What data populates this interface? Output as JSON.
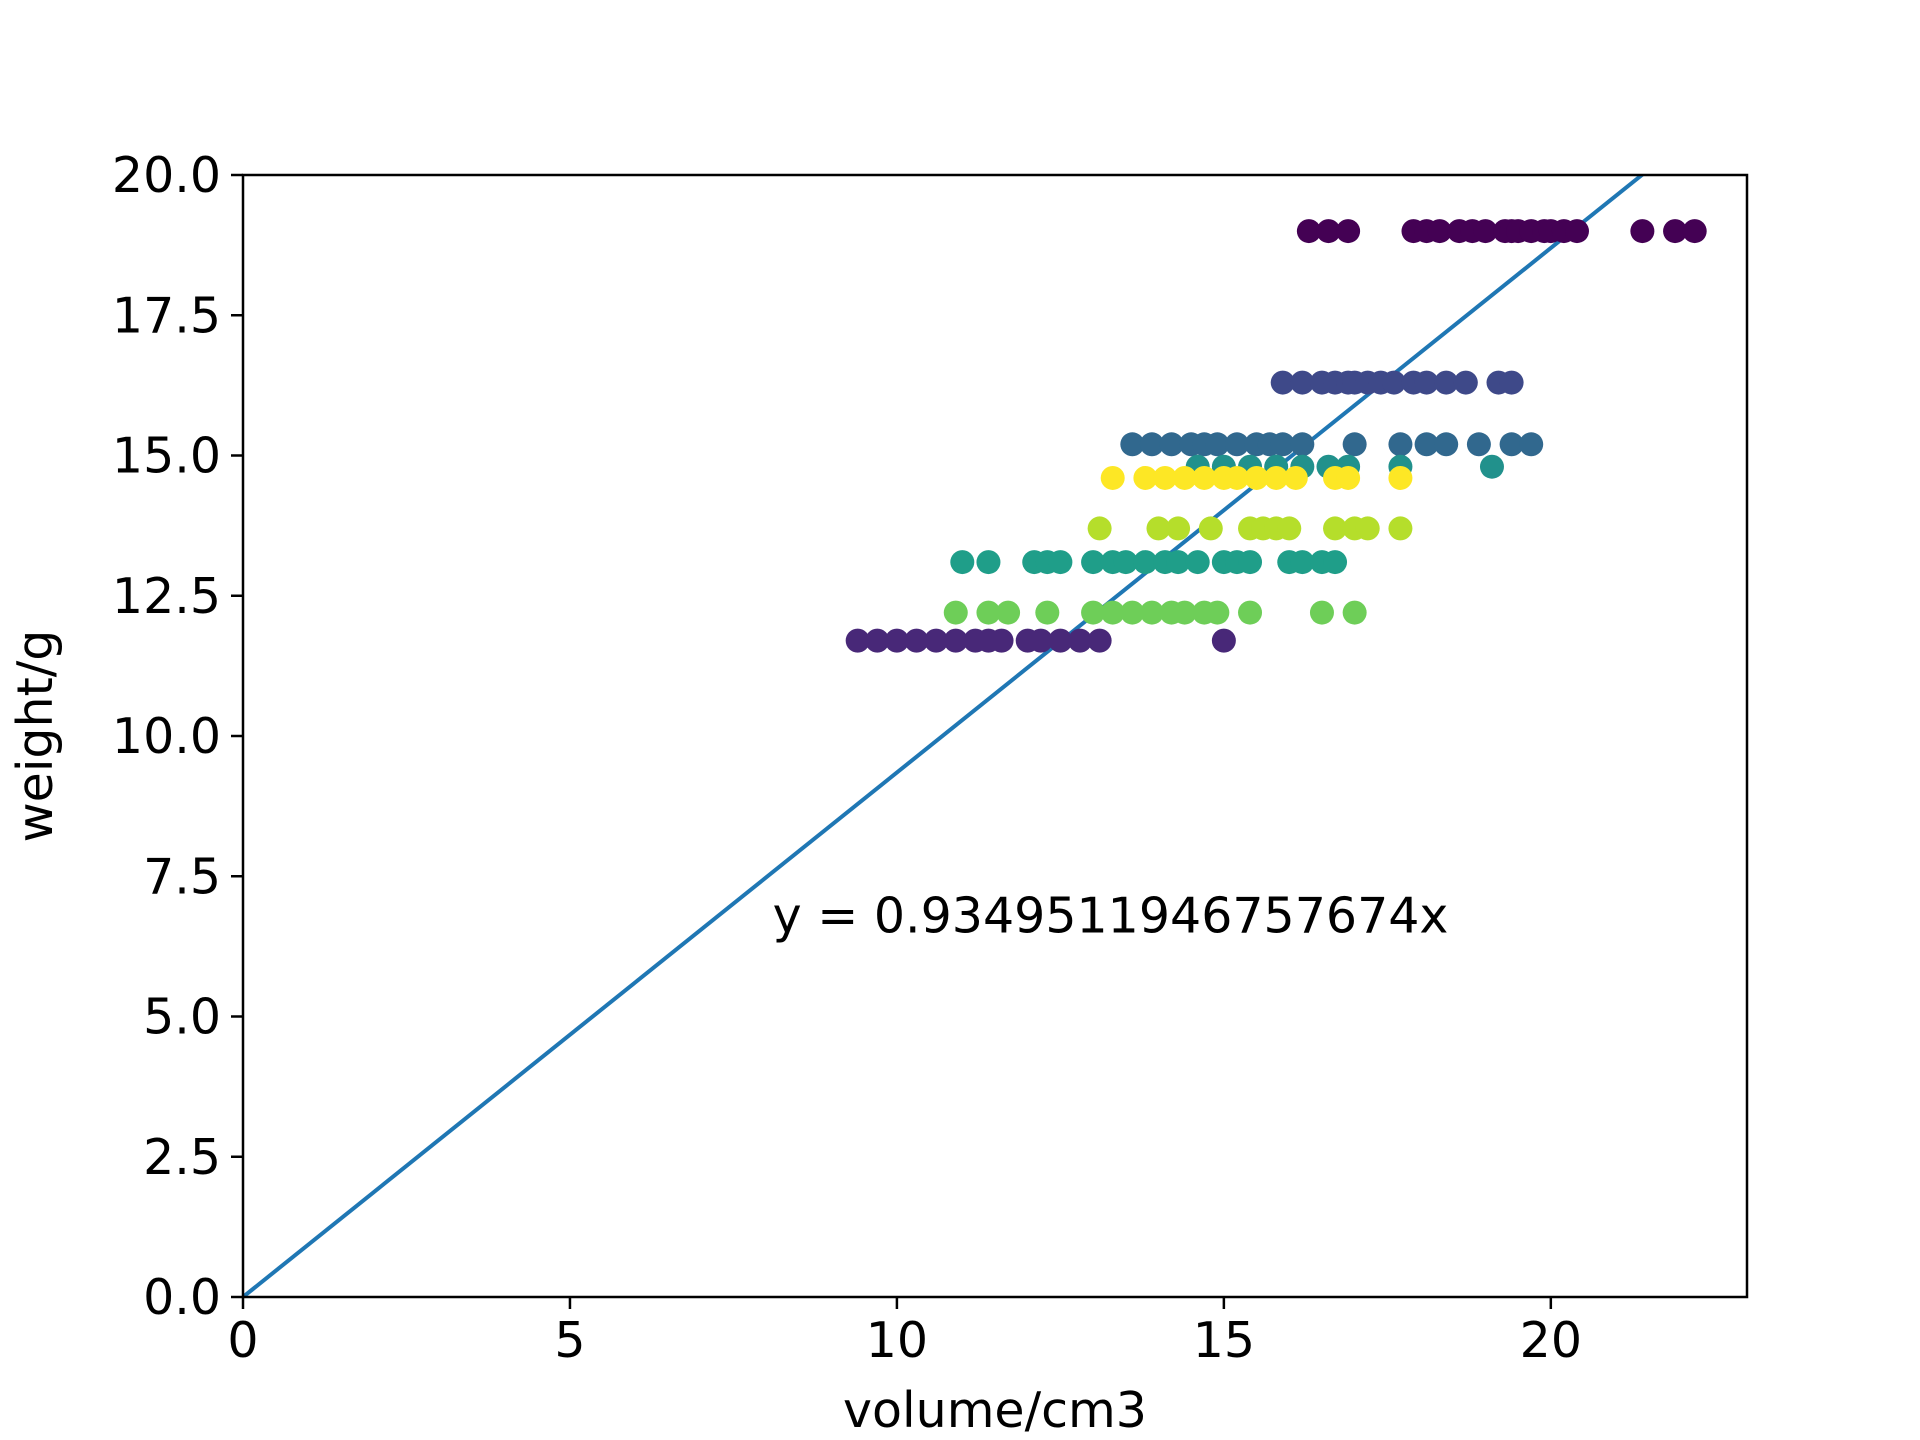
{
  "chart_data": {
    "type": "scatter",
    "title": "",
    "xlabel": "volume/cm3",
    "ylabel": "weight/g",
    "xlim": [
      0,
      23
    ],
    "ylim": [
      0,
      20
    ],
    "x_ticks": [
      "0",
      "5",
      "10",
      "15",
      "20"
    ],
    "y_ticks": [
      "0.0",
      "2.5",
      "5.0",
      "7.5",
      "10.0",
      "12.5",
      "15.0",
      "17.5",
      "20.0"
    ],
    "grid": false,
    "legend": "none",
    "annotation": {
      "text": "y = 0.9349511946757674x",
      "x": 8.1,
      "y": 6.5
    },
    "fit_line": {
      "slope": 0.9349511946757674,
      "intercept": 0,
      "x_range": [
        0,
        23
      ],
      "color": "#1f77b4"
    },
    "colormap": "viridis",
    "series": [
      {
        "color": "#440154",
        "y": 19.0,
        "x": [
          16.3,
          16.6,
          16.9,
          17.9,
          18.1,
          18.3,
          18.6,
          18.8,
          19.0,
          19.3,
          19.4,
          19.5,
          19.7,
          19.9,
          20.0,
          20.2,
          20.4,
          21.4,
          21.9,
          22.2
        ]
      },
      {
        "color": "#3e4989",
        "y": 16.3,
        "x": [
          15.9,
          16.2,
          16.5,
          16.7,
          16.9,
          17.0,
          17.2,
          17.4,
          17.6,
          17.9,
          18.1,
          18.4,
          18.7,
          19.2,
          19.4
        ]
      },
      {
        "color": "#31688e",
        "y": 15.2,
        "x": [
          13.6,
          13.9,
          14.2,
          14.5,
          14.7,
          14.9,
          15.2,
          15.5,
          15.7,
          15.9,
          16.2,
          17.0,
          17.7,
          18.1,
          18.4,
          18.9,
          19.4,
          19.7
        ]
      },
      {
        "color": "#21918c",
        "y": 14.8,
        "x": [
          14.6,
          15.0,
          15.4,
          15.8,
          16.2,
          16.6,
          16.9,
          17.7,
          19.1
        ]
      },
      {
        "color": "#fde725",
        "y": 14.6,
        "x": [
          13.3,
          13.8,
          14.1,
          14.4,
          14.7,
          15.0,
          15.2,
          15.5,
          15.8,
          16.1,
          16.7,
          16.9,
          17.7
        ]
      },
      {
        "color": "#b5de2b",
        "y": 13.7,
        "x": [
          13.1,
          14.0,
          14.3,
          14.8,
          15.4,
          15.6,
          15.8,
          16.0,
          16.7,
          17.0,
          17.2,
          17.7
        ]
      },
      {
        "color": "#1f9e89",
        "y": 13.1,
        "x": [
          11.0,
          11.4,
          12.1,
          12.3,
          12.5,
          13.0,
          13.3,
          13.5,
          13.8,
          14.1,
          14.3,
          14.6,
          15.0,
          15.2,
          15.4,
          16.0,
          16.2,
          16.5,
          16.7
        ]
      },
      {
        "color": "#6ece58",
        "y": 12.2,
        "x": [
          10.9,
          11.4,
          11.7,
          12.3,
          13.0,
          13.3,
          13.6,
          13.9,
          14.2,
          14.4,
          14.7,
          14.9,
          15.4,
          16.5,
          17.0
        ]
      },
      {
        "color": "#482878",
        "y": 11.7,
        "x": [
          9.4,
          9.7,
          10.0,
          10.3,
          10.6,
          10.9,
          11.2,
          11.4,
          11.6,
          12.0,
          12.2,
          12.5,
          12.8,
          13.1,
          15.0
        ]
      }
    ]
  }
}
